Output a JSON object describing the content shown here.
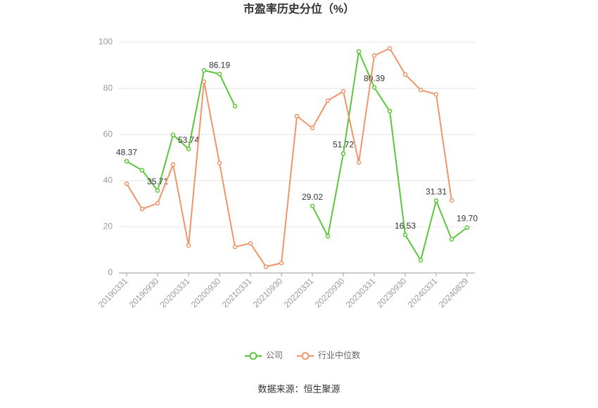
{
  "chart_data": {
    "type": "line",
    "title": "市盈率历史分位（%）",
    "categories": [
      "20190331",
      null,
      "20190930",
      null,
      "20200331",
      null,
      "20200930",
      null,
      "20210331",
      null,
      "20210930",
      null,
      "20220331",
      null,
      "20220930",
      null,
      "20230331",
      null,
      "20230930",
      null,
      "20240331",
      null,
      "20240829"
    ],
    "series": [
      {
        "name": "公司",
        "color": "#5cc63a",
        "values": [
          48.37,
          44.5,
          35.71,
          59.8,
          53.74,
          87.8,
          86.19,
          72.3,
          null,
          null,
          null,
          null,
          29.02,
          15.9,
          51.72,
          96.0,
          80.39,
          70.1,
          16.53,
          5.5,
          31.31,
          14.6,
          19.7
        ],
        "value_labels": [
          "48.37",
          null,
          "35.71",
          null,
          "53.74",
          null,
          "86.19",
          null,
          null,
          null,
          null,
          null,
          "29.02",
          null,
          "51.72",
          null,
          "80.39",
          null,
          "16.53",
          null,
          "31.31",
          null,
          "19.70"
        ]
      },
      {
        "name": "行业中位数",
        "color": "#f0956a",
        "values": [
          38.7,
          27.7,
          30.2,
          47.0,
          11.9,
          82.9,
          47.6,
          11.3,
          12.8,
          2.7,
          4.3,
          68.0,
          62.8,
          74.7,
          78.7,
          47.9,
          94.2,
          97.3,
          86.0,
          79.3,
          77.4,
          31.4,
          null
        ]
      }
    ],
    "ylim": [
      0,
      100
    ],
    "yticks": [
      0,
      20,
      40,
      60,
      80,
      100
    ],
    "grid": true,
    "legend": "bottom",
    "source": "数据来源：恒生聚源"
  }
}
